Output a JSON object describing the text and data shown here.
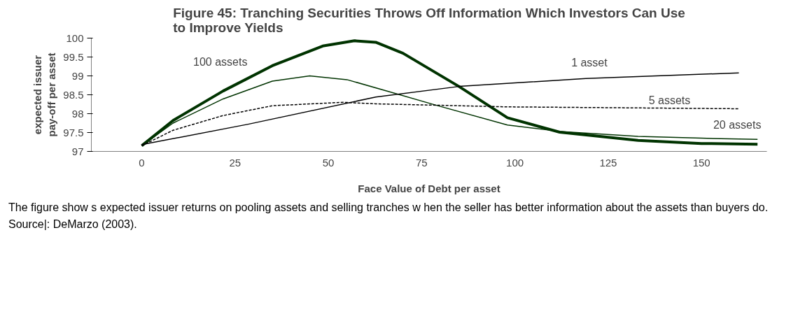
{
  "chart_data": {
    "type": "line",
    "title": "Figure 45: Tranching Securities Throws Off Information Which Investors Can Use to Improve Yields",
    "xlabel": "Face Value of Debt per asset",
    "ylabel": "expected issuer pay-off per asset",
    "xlim": [
      -13.5,
      167.5
    ],
    "xticks": [
      0,
      25,
      50,
      75,
      100,
      125,
      150
    ],
    "ylim": [
      97,
      100
    ],
    "yticks": [
      97,
      97.5,
      98,
      98.5,
      99,
      99.5,
      100
    ],
    "grid": false,
    "series": [
      {
        "name": "100 assets",
        "color": "#003300",
        "line_style": "solid",
        "x": [
          0,
          8.4,
          21.8,
          35,
          48.5,
          57,
          62.7,
          70,
          85,
          98,
          112,
          133,
          150,
          165
        ],
        "values": [
          97.15,
          97.82,
          98.6,
          99.27,
          99.79,
          99.93,
          99.89,
          99.6,
          98.72,
          97.89,
          97.51,
          97.29,
          97.21,
          97.19
        ]
      },
      {
        "name": "20 assets",
        "color": "#003300",
        "line_style": "solid",
        "x": [
          0,
          8.4,
          21.8,
          35,
          45,
          55,
          66.4,
          79,
          98,
          112,
          133,
          150,
          165
        ],
        "values": [
          97.15,
          97.75,
          98.39,
          98.86,
          99.0,
          98.9,
          98.58,
          98.22,
          97.7,
          97.53,
          97.4,
          97.35,
          97.32
        ]
      },
      {
        "name": "5 assets",
        "color": "#000000",
        "line_style": "dashed",
        "x": [
          0,
          8.4,
          21.8,
          35,
          54,
          62.7,
          98,
          160
        ],
        "values": [
          97.15,
          97.56,
          97.95,
          98.21,
          98.3,
          98.26,
          98.18,
          98.13
        ]
      },
      {
        "name": "1 asset",
        "color": "#000000",
        "line_style": "solid",
        "x": [
          0,
          28.5,
          62.7,
          85,
          119,
          160
        ],
        "values": [
          97.18,
          97.72,
          98.44,
          98.72,
          98.93,
          99.08
        ]
      }
    ],
    "annotations": [
      "The figure show s expected issuer returns on pooling assets and selling tranches w hen the seller has better information about the assets than buyers do. Source|: DeMarzo (2003)."
    ]
  }
}
